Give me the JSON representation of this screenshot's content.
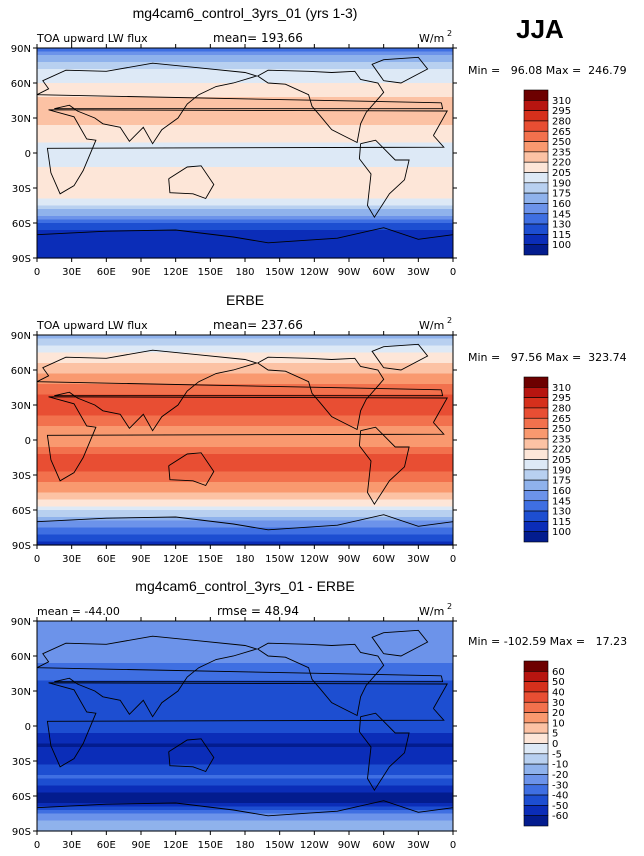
{
  "season_label": "JJA",
  "panels": [
    {
      "title": "mg4cam6_control_3yrs_01 (yrs 1-3)",
      "left_label": "TOA upward LW flux",
      "center_label": "mean= 193.66",
      "units_label": "W/m",
      "units_superscript": "2",
      "minmax_label": "Min =   96.08 Max =  246.79"
    },
    {
      "title": "ERBE",
      "left_label": "TOA upward LW flux",
      "center_label": "mean= 237.66",
      "units_label": "W/m",
      "units_superscript": "2",
      "minmax_label": "Min =   97.56 Max =  323.74"
    },
    {
      "title": "mg4cam6_control_3yrs_01 - ERBE",
      "left_label": "mean = -44.00",
      "center_label": "rmse =  48.94",
      "units_label": "W/m",
      "units_superscript": "2",
      "minmax_label": "Min = -102.59 Max =   17.23"
    }
  ],
  "chart_data": [
    {
      "type": "heatmap",
      "title": "mg4cam6_control_3yrs_01 (yrs 1-3)",
      "variable": "TOA upward LW flux",
      "units": "W/m2",
      "mean": 193.66,
      "min": 96.08,
      "max": 246.79,
      "x_ticks": [
        "0",
        "30E",
        "60E",
        "90E",
        "120E",
        "150E",
        "180",
        "150W",
        "120W",
        "90W",
        "60W",
        "30W",
        "0"
      ],
      "y_ticks": [
        "90N",
        "60N",
        "30N",
        "0",
        "30S",
        "60S",
        "90S"
      ],
      "xlim": [
        0,
        360
      ],
      "ylim": [
        -90,
        90
      ],
      "colorbar_levels": [
        310,
        295,
        280,
        265,
        250,
        235,
        220,
        205,
        190,
        175,
        160,
        145,
        130,
        115,
        100
      ],
      "colorbar_colors": [
        "#6d0000",
        "#b71510",
        "#d6301c",
        "#e84e33",
        "#f2714d",
        "#f9996f",
        "#fcc2a4",
        "#fde6d8",
        "#dde9f6",
        "#b8d0f0",
        "#8fb2ec",
        "#6c93ea",
        "#3f6fe2",
        "#1d4ed1",
        "#0b2db8",
        "#031c8e"
      ],
      "zonal_profile": [
        {
          "lat": 90,
          "value": 138
        },
        {
          "lat": 75,
          "value": 185
        },
        {
          "lat": 60,
          "value": 205
        },
        {
          "lat": 45,
          "value": 222
        },
        {
          "lat": 30,
          "value": 228
        },
        {
          "lat": 15,
          "value": 210
        },
        {
          "lat": 0,
          "value": 196
        },
        {
          "lat": -15,
          "value": 208
        },
        {
          "lat": -30,
          "value": 214
        },
        {
          "lat": -45,
          "value": 196
        },
        {
          "lat": -55,
          "value": 148
        },
        {
          "lat": -65,
          "value": 118
        },
        {
          "lat": -75,
          "value": 102
        },
        {
          "lat": -90,
          "value": 100
        }
      ]
    },
    {
      "type": "heatmap",
      "title": "ERBE",
      "variable": "TOA upward LW flux",
      "units": "W/m2",
      "mean": 237.66,
      "min": 97.56,
      "max": 323.74,
      "x_ticks": [
        "0",
        "30E",
        "60E",
        "90E",
        "120E",
        "150E",
        "180",
        "150W",
        "120W",
        "90W",
        "60W",
        "30W",
        "0"
      ],
      "y_ticks": [
        "90N",
        "60N",
        "30N",
        "0",
        "30S",
        "60S",
        "90S"
      ],
      "xlim": [
        0,
        360
      ],
      "ylim": [
        -90,
        90
      ],
      "colorbar_levels": [
        310,
        295,
        280,
        265,
        250,
        235,
        220,
        205,
        190,
        175,
        160,
        145,
        130,
        115,
        100
      ],
      "colorbar_colors": [
        "#6d0000",
        "#b71510",
        "#d6301c",
        "#e84e33",
        "#f2714d",
        "#f9996f",
        "#fcc2a4",
        "#fde6d8",
        "#dde9f6",
        "#b8d0f0",
        "#8fb2ec",
        "#6c93ea",
        "#3f6fe2",
        "#1d4ed1",
        "#0b2db8",
        "#031c8e"
      ],
      "zonal_profile": [
        {
          "lat": 90,
          "value": 165
        },
        {
          "lat": 75,
          "value": 205
        },
        {
          "lat": 60,
          "value": 228
        },
        {
          "lat": 45,
          "value": 255
        },
        {
          "lat": 30,
          "value": 278
        },
        {
          "lat": 15,
          "value": 252
        },
        {
          "lat": 0,
          "value": 238
        },
        {
          "lat": -15,
          "value": 275
        },
        {
          "lat": -30,
          "value": 262
        },
        {
          "lat": -45,
          "value": 232
        },
        {
          "lat": -55,
          "value": 212
        },
        {
          "lat": -65,
          "value": 178
        },
        {
          "lat": -75,
          "value": 140
        },
        {
          "lat": -90,
          "value": 110
        }
      ]
    },
    {
      "type": "heatmap",
      "title": "mg4cam6_control_3yrs_01 - ERBE",
      "variable": "difference",
      "units": "W/m2",
      "mean": -44.0,
      "rmse": 48.94,
      "min": -102.59,
      "max": 17.23,
      "x_ticks": [
        "0",
        "30E",
        "60E",
        "90E",
        "120E",
        "150E",
        "180",
        "150W",
        "120W",
        "90W",
        "60W",
        "30W",
        "0"
      ],
      "y_ticks": [
        "90N",
        "60N",
        "30N",
        "0",
        "30S",
        "60S",
        "90S"
      ],
      "xlim": [
        0,
        360
      ],
      "ylim": [
        -90,
        90
      ],
      "colorbar_levels": [
        60,
        50,
        40,
        30,
        20,
        10,
        5,
        0,
        -5,
        -10,
        -20,
        -30,
        -40,
        -50,
        -60
      ],
      "colorbar_colors": [
        "#6d0000",
        "#b71510",
        "#d6301c",
        "#e84e33",
        "#f2714d",
        "#f9996f",
        "#fcc2a4",
        "#fde6d8",
        "#dde9f6",
        "#b8d0f0",
        "#8fb2ec",
        "#6c93ea",
        "#3f6fe2",
        "#1d4ed1",
        "#0b2db8",
        "#031c8e"
      ],
      "zonal_profile": [
        {
          "lat": 90,
          "value": -28
        },
        {
          "lat": 75,
          "value": -22
        },
        {
          "lat": 60,
          "value": -28
        },
        {
          "lat": 45,
          "value": -34
        },
        {
          "lat": 30,
          "value": -50
        },
        {
          "lat": 15,
          "value": -44
        },
        {
          "lat": 0,
          "value": -42
        },
        {
          "lat": -15,
          "value": -62
        },
        {
          "lat": -30,
          "value": -52
        },
        {
          "lat": -45,
          "value": -38
        },
        {
          "lat": -55,
          "value": -58
        },
        {
          "lat": -65,
          "value": -66
        },
        {
          "lat": -75,
          "value": -28
        },
        {
          "lat": -90,
          "value": -10
        }
      ]
    }
  ]
}
